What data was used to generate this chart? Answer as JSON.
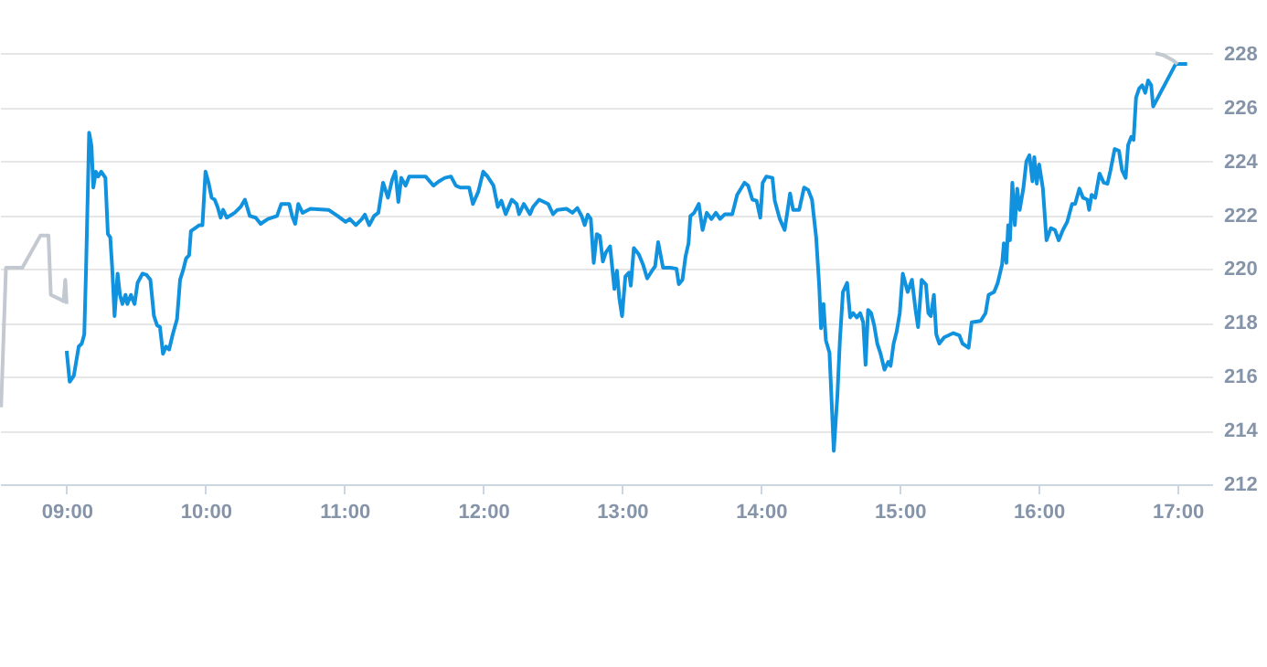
{
  "chart_data": {
    "type": "line",
    "series": [
      {
        "color": "#c3c9d0",
        "x": [
          8.528,
          8.563,
          8.681,
          8.812,
          8.869,
          8.886,
          8.943,
          8.978,
          8.99,
          9.0
        ],
        "values": [
          214.86,
          220.05,
          220.05,
          221.25,
          221.25,
          219.04,
          218.9,
          218.8,
          219.6,
          218.7
        ]
      },
      {
        "color": "#1192de",
        "x": [
          9.0,
          9.022,
          9.052,
          9.087,
          9.109,
          9.127,
          9.14,
          9.162,
          9.179,
          9.192,
          9.21,
          9.227,
          9.249,
          9.279,
          9.297,
          9.314,
          9.328,
          9.345,
          9.367,
          9.384,
          9.402,
          9.424,
          9.437,
          9.463,
          9.489,
          9.511,
          9.546,
          9.576,
          9.603,
          9.629,
          9.651,
          9.672,
          9.694,
          9.716,
          9.738,
          9.764,
          9.795,
          9.817,
          9.838,
          9.86,
          9.882,
          9.895,
          9.926,
          9.956,
          9.978,
          10.0,
          10.022,
          10.044,
          10.066,
          10.087,
          10.109,
          10.127,
          10.153,
          10.21,
          10.253,
          10.284,
          10.319,
          10.362,
          10.397,
          10.45,
          10.515,
          10.546,
          10.603,
          10.624,
          10.646,
          10.668,
          10.699,
          10.755,
          10.886,
          10.952,
          11.009,
          11.039,
          11.083,
          11.127,
          11.148,
          11.179,
          11.214,
          11.245,
          11.279,
          11.314,
          11.345,
          11.367,
          11.389,
          11.41,
          11.441,
          11.467,
          11.52,
          11.585,
          11.642,
          11.681,
          11.724,
          11.768,
          11.803,
          11.834,
          11.899,
          11.926,
          11.965,
          12.0,
          12.031,
          12.074,
          12.105,
          12.131,
          12.162,
          12.206,
          12.241,
          12.258,
          12.293,
          12.337,
          12.359,
          12.403,
          12.468,
          12.503,
          12.534,
          12.6,
          12.643,
          12.678,
          12.709,
          12.731,
          12.753,
          12.775,
          12.796,
          12.818,
          12.84,
          12.862,
          12.884,
          12.914,
          12.945,
          12.963,
          12.98,
          13.0,
          13.024,
          13.05,
          13.063,
          13.085,
          13.12,
          13.151,
          13.181,
          13.216,
          13.238,
          13.26,
          13.295,
          13.348,
          13.392,
          13.409,
          13.435,
          13.457,
          13.479,
          13.492,
          13.519,
          13.553,
          13.58,
          13.61,
          13.644,
          13.676,
          13.706,
          13.741,
          13.794,
          13.829,
          13.882,
          13.908,
          13.939,
          13.969,
          13.996,
          14.013,
          14.039,
          14.083,
          14.1,
          14.136,
          14.171,
          14.193,
          14.21,
          14.232,
          14.276,
          14.311,
          14.341,
          14.368,
          14.398,
          14.42,
          14.433,
          14.451,
          14.468,
          14.494,
          14.525,
          14.551,
          14.569,
          14.591,
          14.621,
          14.643,
          14.665,
          14.691,
          14.715,
          14.737,
          14.754,
          14.772,
          14.794,
          14.816,
          14.838,
          14.86,
          14.89,
          14.917,
          14.934,
          14.956,
          14.978,
          15.0,
          15.022,
          15.057,
          15.088,
          15.114,
          15.132,
          15.158,
          15.189,
          15.206,
          15.224,
          15.246,
          15.263,
          15.285,
          15.32,
          15.386,
          15.43,
          15.452,
          15.496,
          15.518,
          15.583,
          15.618,
          15.64,
          15.68,
          15.706,
          15.737,
          15.75,
          15.768,
          15.781,
          15.794,
          15.811,
          15.829,
          15.846,
          15.864,
          15.89,
          15.912,
          15.934,
          15.956,
          15.969,
          15.987,
          16.004,
          16.031,
          16.057,
          16.088,
          16.118,
          16.145,
          16.175,
          16.206,
          16.241,
          16.263,
          16.294,
          16.32,
          16.351,
          16.364,
          16.382,
          16.408,
          16.439,
          16.469,
          16.496,
          16.518,
          16.548,
          16.579,
          16.601,
          16.627,
          16.645,
          16.667,
          16.684,
          16.702,
          16.724,
          16.746,
          16.768,
          16.789,
          16.811,
          16.825,
          16.987,
          17.07
        ],
        "values": [
          216.96,
          215.81,
          216.04,
          217.12,
          217.23,
          217.57,
          220.05,
          225.07,
          224.57,
          223.03,
          223.62,
          223.44,
          223.62,
          223.39,
          221.3,
          221.18,
          220.05,
          218.25,
          219.83,
          219.04,
          218.7,
          219.04,
          218.7,
          219.04,
          218.7,
          219.49,
          219.83,
          219.78,
          219.6,
          218.25,
          217.91,
          217.84,
          216.85,
          217.12,
          217.01,
          217.57,
          218.14,
          219.6,
          219.94,
          220.39,
          220.51,
          221.41,
          221.52,
          221.63,
          221.63,
          223.62,
          223.21,
          222.65,
          222.58,
          222.31,
          221.91,
          222.2,
          221.91,
          222.09,
          222.31,
          222.58,
          221.97,
          221.91,
          221.68,
          221.86,
          221.97,
          222.42,
          222.42,
          221.97,
          221.68,
          222.42,
          222.09,
          222.24,
          222.2,
          221.97,
          221.75,
          221.86,
          221.63,
          221.86,
          222.02,
          221.63,
          221.97,
          222.09,
          223.21,
          222.65,
          223.33,
          223.62,
          222.49,
          223.39,
          223.1,
          223.44,
          223.44,
          223.44,
          223.1,
          223.26,
          223.39,
          223.44,
          223.1,
          223.03,
          223.03,
          222.42,
          222.88,
          223.62,
          223.44,
          223.1,
          222.31,
          222.54,
          222.04,
          222.58,
          222.42,
          222.04,
          222.42,
          222.04,
          222.31,
          222.58,
          222.42,
          222.04,
          222.2,
          222.24,
          222.09,
          222.27,
          221.97,
          221.63,
          222.02,
          221.86,
          220.23,
          221.3,
          221.23,
          220.28,
          220.62,
          220.84,
          219.26,
          219.94,
          218.93,
          218.25,
          219.72,
          219.87,
          219.38,
          220.78,
          220.55,
          220.17,
          219.65,
          219.94,
          220.1,
          221.0,
          220.05,
          220.05,
          220.01,
          219.44,
          219.6,
          220.46,
          220.96,
          221.97,
          222.09,
          222.42,
          221.45,
          222.09,
          221.86,
          222.09,
          221.86,
          222.04,
          222.04,
          222.76,
          223.21,
          223.1,
          222.58,
          222.54,
          221.91,
          223.21,
          223.44,
          223.39,
          222.54,
          221.86,
          221.45,
          222.2,
          222.81,
          222.2,
          222.2,
          223.03,
          222.94,
          222.58,
          221.18,
          219.38,
          217.8,
          218.7,
          217.35,
          216.89,
          213.24,
          215.31,
          217.35,
          219.15,
          219.49,
          218.2,
          218.36,
          218.2,
          218.36,
          218.02,
          216.44,
          218.48,
          218.36,
          217.91,
          217.23,
          216.89,
          216.26,
          216.55,
          216.4,
          217.23,
          217.68,
          218.36,
          219.83,
          219.15,
          219.6,
          218.48,
          217.84,
          219.6,
          219.42,
          218.36,
          218.25,
          219.04,
          217.57,
          217.23,
          217.46,
          217.62,
          217.53,
          217.23,
          217.07,
          218.02,
          218.07,
          218.36,
          219.04,
          219.15,
          219.49,
          220.17,
          220.96,
          220.23,
          221.63,
          221.07,
          223.21,
          221.63,
          222.99,
          222.2,
          222.99,
          224.0,
          224.23,
          223.26,
          224.16,
          223.17,
          223.89,
          222.99,
          221.07,
          221.52,
          221.45,
          221.07,
          221.45,
          221.75,
          222.42,
          222.42,
          222.99,
          222.65,
          222.58,
          222.2,
          222.76,
          222.65,
          223.55,
          223.21,
          223.17,
          223.67,
          224.46,
          224.39,
          223.67,
          223.39,
          224.61,
          224.91,
          224.8,
          226.37,
          226.71,
          226.83,
          226.55,
          227.01,
          226.83,
          226.04,
          227.62,
          227.62
        ]
      },
      {
        "color": "#c3c9d0",
        "x": [
          16.842,
          16.899,
          16.965,
          17.0
        ],
        "values": [
          228.02,
          227.95,
          227.77,
          227.62
        ]
      }
    ],
    "xlim": [
      8.52,
      17.25
    ],
    "xticks": [
      {
        "value": 9,
        "label": "09:00"
      },
      {
        "value": 10,
        "label": "10:00"
      },
      {
        "value": 11,
        "label": "11:00"
      },
      {
        "value": 12,
        "label": "12:00"
      },
      {
        "value": 13,
        "label": "13:00"
      },
      {
        "value": 14,
        "label": "14:00"
      },
      {
        "value": 15,
        "label": "15:00"
      },
      {
        "value": 16,
        "label": "16:00"
      },
      {
        "value": 17,
        "label": "17:00"
      }
    ],
    "ylim": [
      212,
      230
    ],
    "yticks": [
      212,
      214,
      216,
      218,
      220,
      222,
      224,
      226,
      228
    ],
    "grid": "y"
  }
}
